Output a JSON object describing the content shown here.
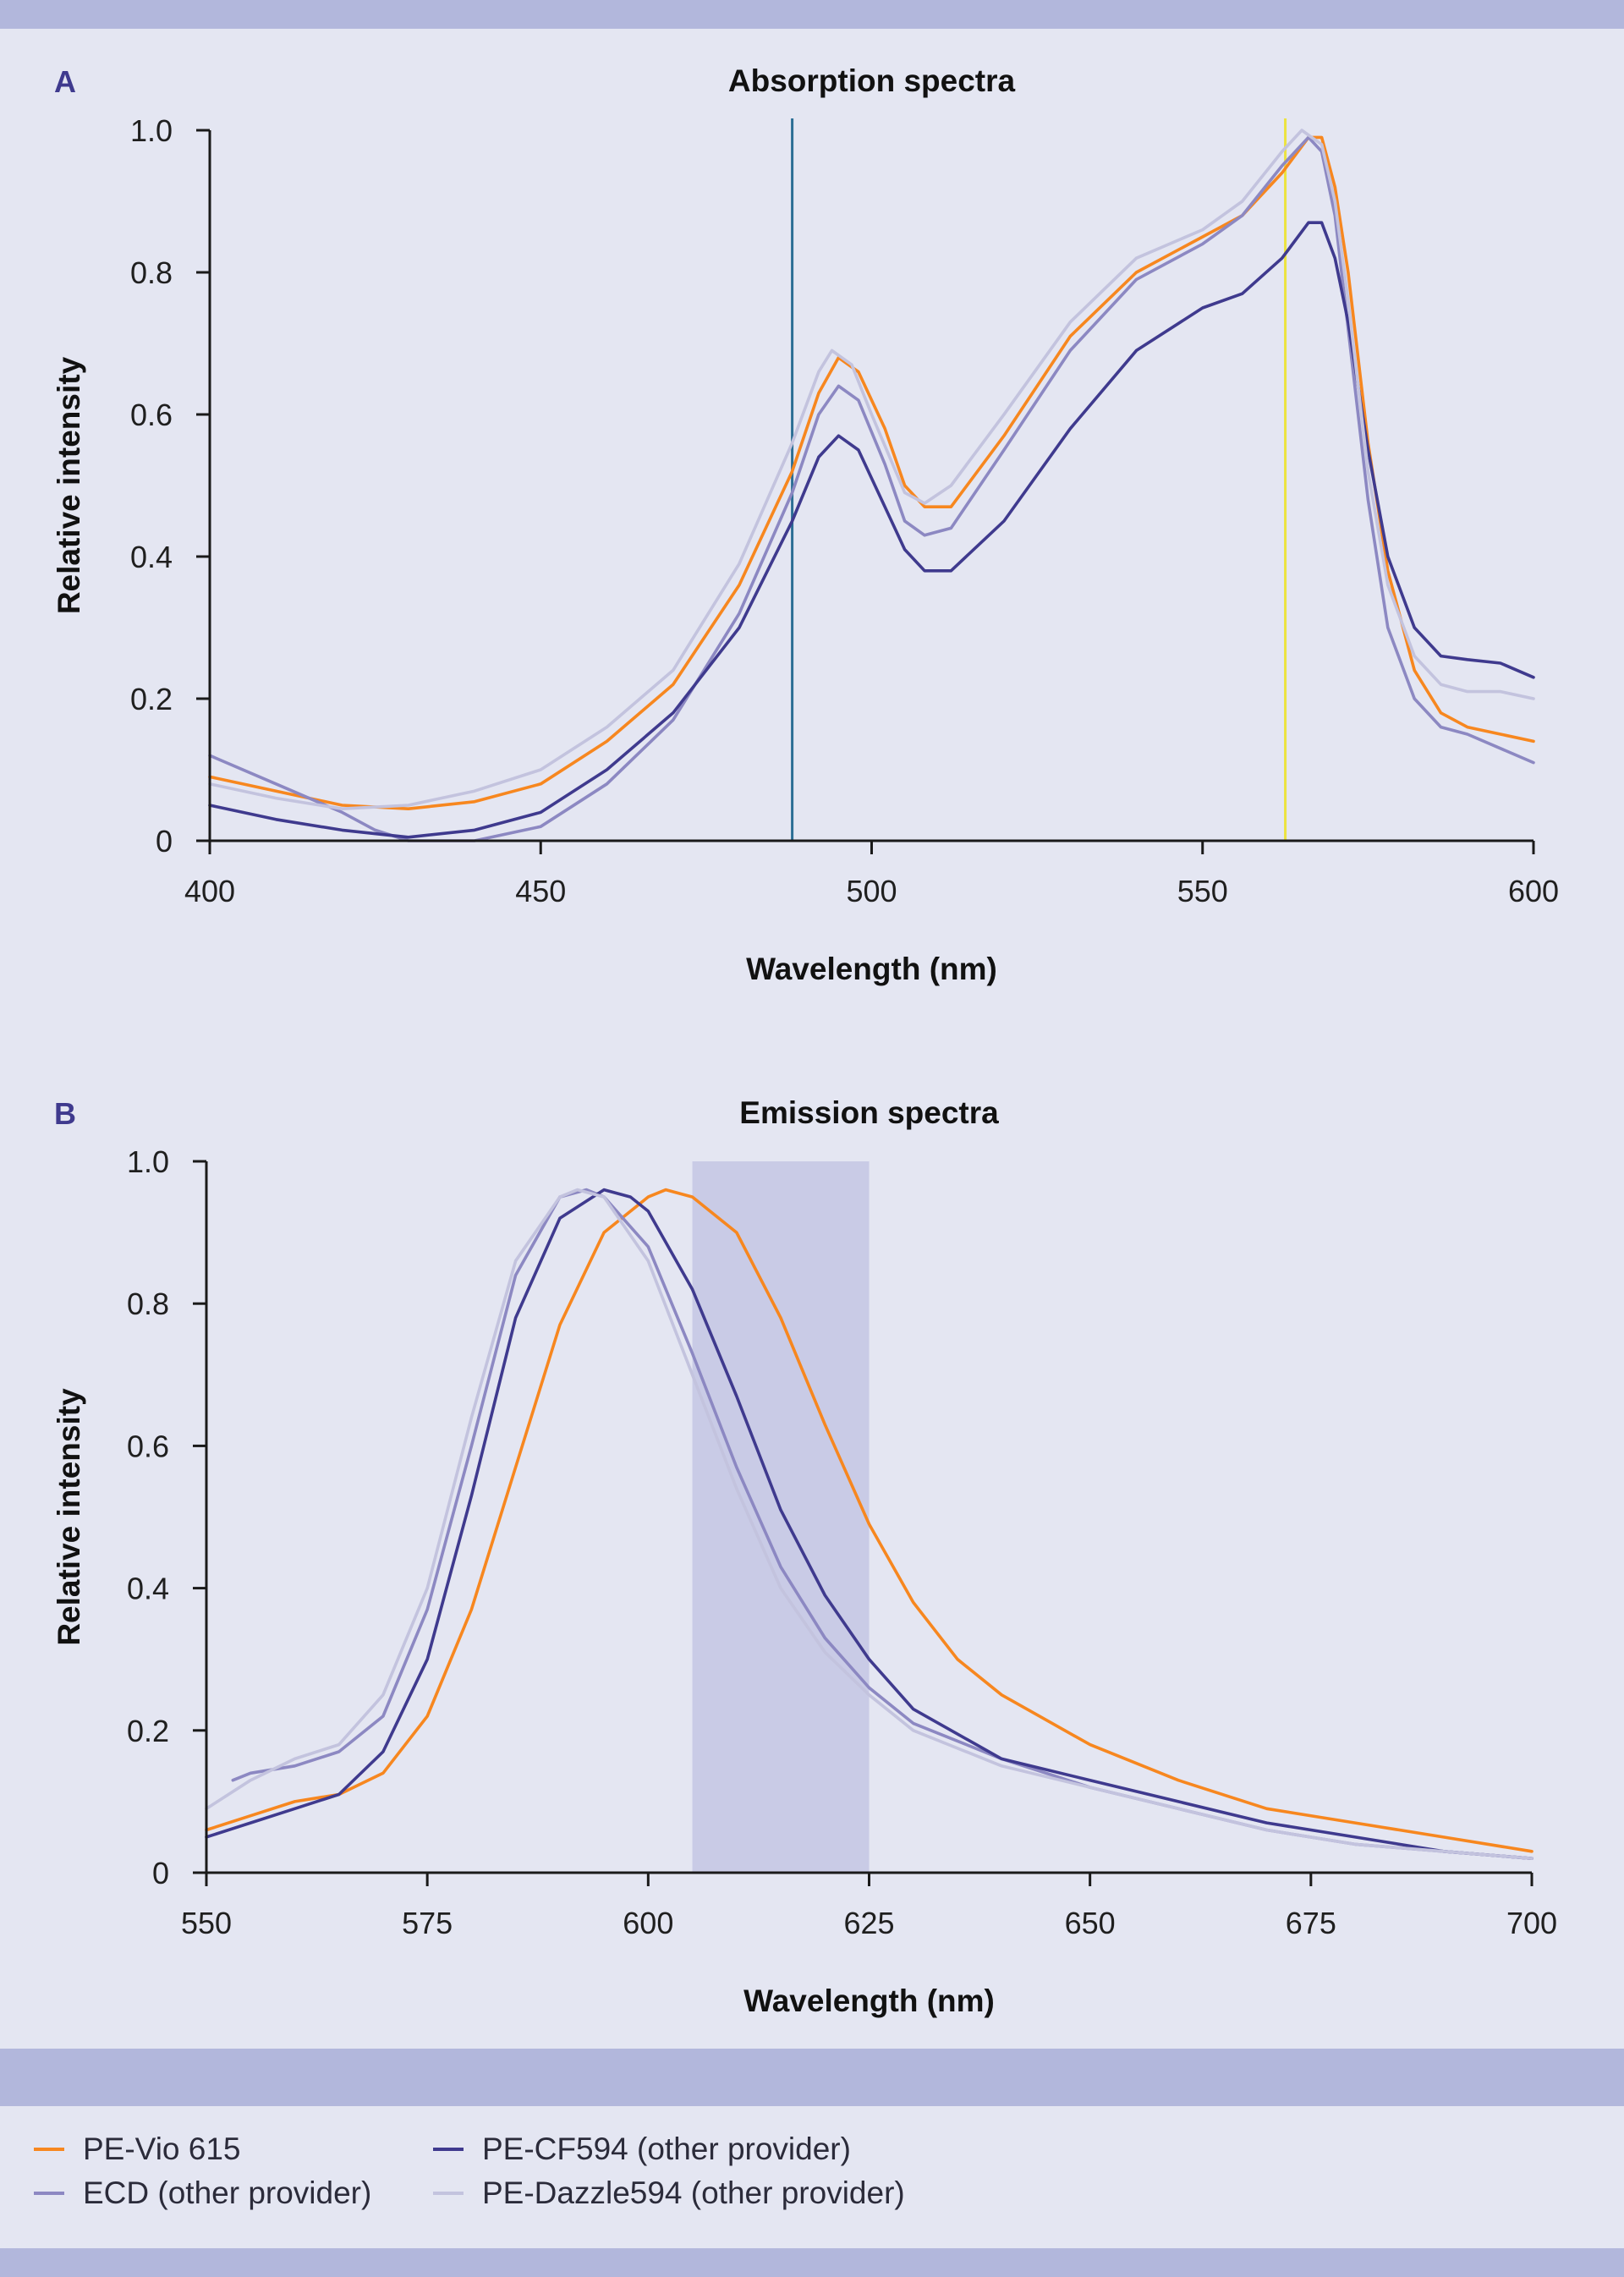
{
  "colors": {
    "pe_vio": "#f7871f",
    "ecd": "#8c88c2",
    "cf594": "#3f3a8e",
    "dazzle": "#c3c3de",
    "laser_blue": "#2c6e95",
    "laser_yellow": "#ece33f",
    "filter_band": "#c9cbe6",
    "axis": "#1a1a1a",
    "panel_letter": "#3f3a8e"
  },
  "legend": [
    {
      "label": "PE-Vio 615",
      "color": "#f7871f"
    },
    {
      "label": "ECD (other provider)",
      "color": "#8c88c2"
    },
    {
      "label": "PE-CF594 (other provider)",
      "color": "#3f3a8e"
    },
    {
      "label": "PE-Dazzle594 (other provider)",
      "color": "#c3c3de"
    }
  ],
  "chart_data": [
    {
      "panel_label": "A",
      "type": "line",
      "title": "Absorption spectra",
      "xlabel": "Wavelength (nm)",
      "ylabel": "Relative intensity",
      "xlim": [
        400,
        600
      ],
      "ylim": [
        0,
        1.0
      ],
      "xticks": [
        400,
        450,
        500,
        550,
        600
      ],
      "xtick_labels": [
        "400",
        "450",
        "500",
        "550",
        "600"
      ],
      "yticks": [
        0,
        0.2,
        0.4,
        0.6,
        0.8,
        1.0
      ],
      "ytick_labels": [
        "0",
        "0.2",
        "0.4",
        "0.6",
        "0.8",
        "1.0"
      ],
      "grid": false,
      "vlines": [
        {
          "x": 488,
          "color": "#2c6e95"
        },
        {
          "x": 562.5,
          "color": "#ece33f"
        }
      ],
      "series": [
        {
          "name": "PE-Vio 615",
          "color": "#f7871f",
          "points": [
            [
              400,
              0.09
            ],
            [
              410,
              0.07
            ],
            [
              420,
              0.05
            ],
            [
              430,
              0.045
            ],
            [
              440,
              0.055
            ],
            [
              450,
              0.08
            ],
            [
              460,
              0.14
            ],
            [
              470,
              0.22
            ],
            [
              480,
              0.36
            ],
            [
              488,
              0.52
            ],
            [
              492,
              0.63
            ],
            [
              495,
              0.68
            ],
            [
              498,
              0.66
            ],
            [
              502,
              0.58
            ],
            [
              505,
              0.5
            ],
            [
              508,
              0.47
            ],
            [
              512,
              0.47
            ],
            [
              520,
              0.57
            ],
            [
              530,
              0.71
            ],
            [
              540,
              0.8
            ],
            [
              550,
              0.85
            ],
            [
              556,
              0.88
            ],
            [
              562,
              0.94
            ],
            [
              566,
              0.99
            ],
            [
              568,
              0.99
            ],
            [
              570,
              0.92
            ],
            [
              572,
              0.8
            ],
            [
              575,
              0.56
            ],
            [
              578,
              0.38
            ],
            [
              582,
              0.24
            ],
            [
              586,
              0.18
            ],
            [
              590,
              0.16
            ],
            [
              595,
              0.15
            ],
            [
              600,
              0.14
            ]
          ]
        },
        {
          "name": "ECD (other provider)",
          "color": "#8c88c2",
          "points": [
            [
              400,
              0.12
            ],
            [
              410,
              0.08
            ],
            [
              420,
              0.04
            ],
            [
              425,
              0.015
            ],
            [
              430,
              0.0
            ],
            [
              440,
              0.0
            ],
            [
              450,
              0.02
            ],
            [
              460,
              0.08
            ],
            [
              470,
              0.17
            ],
            [
              480,
              0.32
            ],
            [
              488,
              0.49
            ],
            [
              492,
              0.6
            ],
            [
              495,
              0.64
            ],
            [
              498,
              0.62
            ],
            [
              502,
              0.53
            ],
            [
              505,
              0.45
            ],
            [
              508,
              0.43
            ],
            [
              512,
              0.44
            ],
            [
              520,
              0.55
            ],
            [
              530,
              0.69
            ],
            [
              540,
              0.79
            ],
            [
              550,
              0.84
            ],
            [
              556,
              0.88
            ],
            [
              562,
              0.95
            ],
            [
              566,
              0.99
            ],
            [
              568,
              0.97
            ],
            [
              570,
              0.88
            ],
            [
              572,
              0.72
            ],
            [
              575,
              0.48
            ],
            [
              578,
              0.3
            ],
            [
              582,
              0.2
            ],
            [
              586,
              0.16
            ],
            [
              590,
              0.15
            ],
            [
              595,
              0.13
            ],
            [
              600,
              0.11
            ]
          ]
        },
        {
          "name": "PE-CF594 (other provider)",
          "color": "#3f3a8e",
          "points": [
            [
              400,
              0.05
            ],
            [
              410,
              0.03
            ],
            [
              420,
              0.015
            ],
            [
              430,
              0.005
            ],
            [
              440,
              0.015
            ],
            [
              450,
              0.04
            ],
            [
              460,
              0.1
            ],
            [
              470,
              0.18
            ],
            [
              480,
              0.3
            ],
            [
              488,
              0.45
            ],
            [
              492,
              0.54
            ],
            [
              495,
              0.57
            ],
            [
              498,
              0.55
            ],
            [
              502,
              0.47
            ],
            [
              505,
              0.41
            ],
            [
              508,
              0.38
            ],
            [
              512,
              0.38
            ],
            [
              520,
              0.45
            ],
            [
              530,
              0.58
            ],
            [
              540,
              0.69
            ],
            [
              550,
              0.75
            ],
            [
              556,
              0.77
            ],
            [
              562,
              0.82
            ],
            [
              566,
              0.87
            ],
            [
              568,
              0.87
            ],
            [
              570,
              0.82
            ],
            [
              572,
              0.73
            ],
            [
              575,
              0.55
            ],
            [
              578,
              0.4
            ],
            [
              582,
              0.3
            ],
            [
              586,
              0.26
            ],
            [
              590,
              0.255
            ],
            [
              595,
              0.25
            ],
            [
              600,
              0.23
            ]
          ]
        },
        {
          "name": "PE-Dazzle594 (other provider)",
          "color": "#c3c3de",
          "points": [
            [
              400,
              0.08
            ],
            [
              410,
              0.06
            ],
            [
              420,
              0.045
            ],
            [
              430,
              0.05
            ],
            [
              440,
              0.07
            ],
            [
              450,
              0.1
            ],
            [
              460,
              0.16
            ],
            [
              470,
              0.24
            ],
            [
              480,
              0.39
            ],
            [
              488,
              0.56
            ],
            [
              492,
              0.66
            ],
            [
              494,
              0.69
            ],
            [
              497,
              0.67
            ],
            [
              500,
              0.6
            ],
            [
              505,
              0.49
            ],
            [
              508,
              0.475
            ],
            [
              512,
              0.5
            ],
            [
              520,
              0.6
            ],
            [
              530,
              0.73
            ],
            [
              540,
              0.82
            ],
            [
              550,
              0.86
            ],
            [
              556,
              0.9
            ],
            [
              562,
              0.97
            ],
            [
              565,
              1.0
            ],
            [
              568,
              0.98
            ],
            [
              570,
              0.9
            ],
            [
              572,
              0.76
            ],
            [
              575,
              0.52
            ],
            [
              578,
              0.36
            ],
            [
              582,
              0.26
            ],
            [
              586,
              0.22
            ],
            [
              590,
              0.21
            ],
            [
              595,
              0.21
            ],
            [
              600,
              0.2
            ]
          ]
        }
      ]
    },
    {
      "panel_label": "B",
      "type": "line",
      "title": "Emission spectra",
      "xlabel": "Wavelength (nm)",
      "ylabel": "Relative intensity",
      "xlim": [
        550,
        700
      ],
      "ylim": [
        0,
        1.0
      ],
      "xticks": [
        550,
        575,
        600,
        625,
        650,
        675,
        700
      ],
      "xtick_labels": [
        "550",
        "575",
        "600",
        "625",
        "650",
        "675",
        "700"
      ],
      "yticks": [
        0,
        0.2,
        0.4,
        0.6,
        0.8,
        1.0
      ],
      "ytick_labels": [
        "0",
        "0.2",
        "0.4",
        "0.6",
        "0.8",
        "1.0"
      ],
      "grid": false,
      "band": {
        "x0": 605,
        "x1": 625,
        "color": "#c9cbe6"
      },
      "series": [
        {
          "name": "PE-Vio 615",
          "color": "#f7871f",
          "points": [
            [
              550,
              0.06
            ],
            [
              555,
              0.08
            ],
            [
              560,
              0.1
            ],
            [
              565,
              0.11
            ],
            [
              570,
              0.14
            ],
            [
              575,
              0.22
            ],
            [
              580,
              0.37
            ],
            [
              585,
              0.57
            ],
            [
              590,
              0.77
            ],
            [
              595,
              0.9
            ],
            [
              600,
              0.95
            ],
            [
              602,
              0.96
            ],
            [
              605,
              0.95
            ],
            [
              610,
              0.9
            ],
            [
              615,
              0.78
            ],
            [
              620,
              0.63
            ],
            [
              625,
              0.49
            ],
            [
              630,
              0.38
            ],
            [
              635,
              0.3
            ],
            [
              640,
              0.25
            ],
            [
              650,
              0.18
            ],
            [
              660,
              0.13
            ],
            [
              670,
              0.09
            ],
            [
              680,
              0.07
            ],
            [
              690,
              0.05
            ],
            [
              700,
              0.03
            ]
          ]
        },
        {
          "name": "ECD (other provider)",
          "color": "#8c88c2",
          "points": [
            [
              553,
              0.13
            ],
            [
              555,
              0.14
            ],
            [
              560,
              0.15
            ],
            [
              565,
              0.17
            ],
            [
              570,
              0.22
            ],
            [
              575,
              0.37
            ],
            [
              580,
              0.6
            ],
            [
              585,
              0.84
            ],
            [
              590,
              0.95
            ],
            [
              593,
              0.96
            ],
            [
              595,
              0.95
            ],
            [
              600,
              0.88
            ],
            [
              605,
              0.73
            ],
            [
              610,
              0.57
            ],
            [
              615,
              0.43
            ],
            [
              620,
              0.33
            ],
            [
              625,
              0.26
            ],
            [
              630,
              0.21
            ],
            [
              640,
              0.16
            ],
            [
              650,
              0.12
            ],
            [
              660,
              0.09
            ],
            [
              670,
              0.06
            ],
            [
              680,
              0.04
            ],
            [
              690,
              0.03
            ],
            [
              700,
              0.02
            ]
          ]
        },
        {
          "name": "PE-CF594 (other provider)",
          "color": "#3f3a8e",
          "points": [
            [
              550,
              0.05
            ],
            [
              555,
              0.07
            ],
            [
              560,
              0.09
            ],
            [
              565,
              0.11
            ],
            [
              570,
              0.17
            ],
            [
              575,
              0.3
            ],
            [
              580,
              0.53
            ],
            [
              585,
              0.78
            ],
            [
              590,
              0.92
            ],
            [
              595,
              0.96
            ],
            [
              598,
              0.95
            ],
            [
              600,
              0.93
            ],
            [
              605,
              0.82
            ],
            [
              610,
              0.67
            ],
            [
              615,
              0.51
            ],
            [
              620,
              0.39
            ],
            [
              625,
              0.3
            ],
            [
              630,
              0.23
            ],
            [
              640,
              0.16
            ],
            [
              650,
              0.13
            ],
            [
              660,
              0.1
            ],
            [
              670,
              0.07
            ],
            [
              680,
              0.05
            ],
            [
              690,
              0.03
            ],
            [
              700,
              0.02
            ]
          ]
        },
        {
          "name": "PE-Dazzle594 (other provider)",
          "color": "#c3c3de",
          "points": [
            [
              550,
              0.09
            ],
            [
              555,
              0.13
            ],
            [
              560,
              0.16
            ],
            [
              565,
              0.18
            ],
            [
              570,
              0.25
            ],
            [
              575,
              0.4
            ],
            [
              580,
              0.64
            ],
            [
              585,
              0.86
            ],
            [
              590,
              0.95
            ],
            [
              592,
              0.96
            ],
            [
              595,
              0.95
            ],
            [
              600,
              0.86
            ],
            [
              605,
              0.7
            ],
            [
              610,
              0.54
            ],
            [
              615,
              0.4
            ],
            [
              620,
              0.31
            ],
            [
              625,
              0.25
            ],
            [
              630,
              0.2
            ],
            [
              640,
              0.15
            ],
            [
              650,
              0.12
            ],
            [
              660,
              0.09
            ],
            [
              670,
              0.06
            ],
            [
              680,
              0.04
            ],
            [
              690,
              0.03
            ],
            [
              700,
              0.02
            ]
          ]
        }
      ]
    }
  ]
}
